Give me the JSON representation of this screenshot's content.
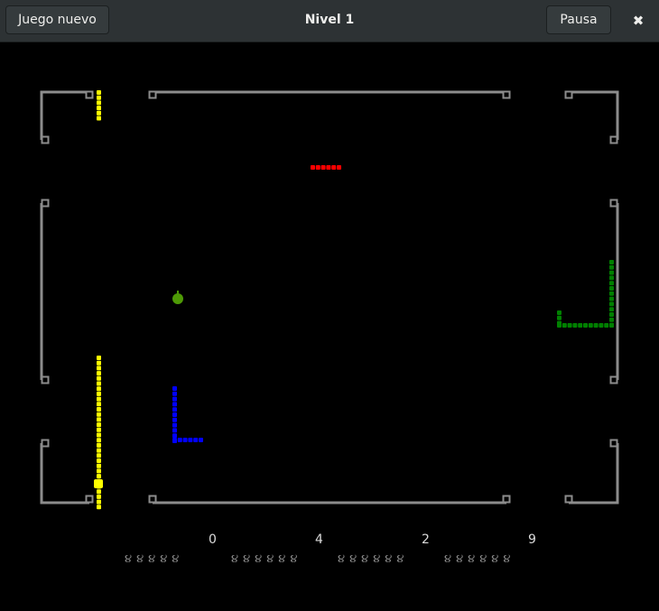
{
  "header": {
    "new_game_label": "Juego nuevo",
    "title": "Nivel 1",
    "pause_label": "Pausa",
    "close_icon": "close-icon"
  },
  "colors": {
    "wall": "#8c8c8c",
    "snake1": "#ffff00",
    "snake2": "#ff0000",
    "snake3": "#0000ff",
    "snake4": "#008000",
    "apple": "#4e9a06"
  },
  "players": [
    {
      "score": "0",
      "lives": 5,
      "lives_icon": "worm-icon"
    },
    {
      "score": "4",
      "lives": 6,
      "lives_icon": "worm-icon"
    },
    {
      "score": "2",
      "lives": 6,
      "lives_icon": "worm-icon"
    },
    {
      "score": "9",
      "lives": 6,
      "lives_icon": "worm-icon"
    }
  ]
}
